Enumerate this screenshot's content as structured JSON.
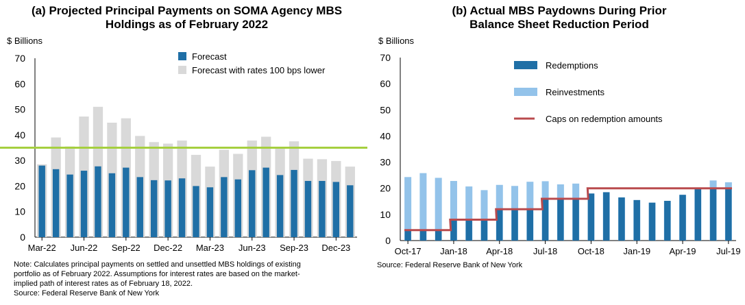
{
  "chart_data": [
    {
      "type": "bar",
      "title_lines": [
        "(a) Projected Principal Payments on SOMA Agency MBS",
        "Holdings as of February 2022"
      ],
      "ylabel": "$ Billions",
      "ylim": [
        0,
        70
      ],
      "yticks": [
        "0",
        "10",
        "20",
        "30",
        "40",
        "50",
        "60",
        "70"
      ],
      "xtick_labels": [
        "Mar-22",
        "Jun-22",
        "Sep-22",
        "Dec-22",
        "Mar-23",
        "Jun-23",
        "Sep-23",
        "Dec-23"
      ],
      "legend_position": "top-right",
      "series": [
        {
          "name": "Forecast",
          "color": "#1f6fa6",
          "values": [
            28,
            26.6,
            24.5,
            26,
            27.7,
            25,
            27.2,
            23.5,
            22.3,
            22.2,
            23,
            20,
            19.5,
            23.5,
            22.6,
            26.2,
            27.2,
            24.3,
            26.3,
            22,
            22,
            21.6,
            20.3
          ]
        },
        {
          "name": "Forecast with rates 100 bps lower",
          "color": "#d9d9d9",
          "values": [
            28.5,
            39,
            35.5,
            47.2,
            51,
            44.8,
            46.5,
            39.6,
            37.2,
            36.6,
            37.8,
            32.2,
            27.6,
            34.2,
            32.6,
            37.8,
            39.3,
            35.2,
            37.5,
            30.7,
            30.5,
            29.8,
            27.6
          ]
        }
      ],
      "reference_line": {
        "value": 35,
        "color": "#a5cf3f"
      },
      "note": "Note: Calculates principal payments on settled and unsettled MBS holdings of existing portfolio as of February 2022. Assumptions for interest rates are based on the market-implied path of interest rates as of February 18, 2022.",
      "note_lines": [
        "Note: Calculates principal payments on settled and unsettled MBS holdings of existing",
        "portfolio as of February 2022. Assumptions for interest rates are based on the market-",
        "implied path of interest rates as of February 18, 2022."
      ],
      "source": "Source: Federal Reserve Bank of New York"
    },
    {
      "type": "bar",
      "title_lines": [
        "(b) Actual MBS Paydowns During Prior",
        "Balance Sheet Reduction Period"
      ],
      "ylabel": "$ Billions",
      "ylim": [
        0,
        70
      ],
      "yticks": [
        "0",
        "10",
        "20",
        "30",
        "40",
        "50",
        "60",
        "70"
      ],
      "xtick_labels": [
        "Oct-17",
        "Jan-18",
        "Apr-18",
        "Jul-18",
        "Oct-18",
        "Jan-19",
        "Apr-19",
        "Jul-19"
      ],
      "legend_position": "top-left",
      "series": [
        {
          "name": "Redemptions",
          "color": "#1f6fa6",
          "values": [
            4,
            4,
            4,
            8,
            8,
            8,
            12,
            12,
            12,
            16,
            16,
            16,
            18,
            18.5,
            16.5,
            15.5,
            14.5,
            15.2,
            17.5,
            20,
            20,
            20
          ]
        },
        {
          "name": "Reinvestments",
          "color": "#93c3ea",
          "values": [
            24.3,
            25.8,
            24,
            22.8,
            20.7,
            19.3,
            21.3,
            20.9,
            22.5,
            22.7,
            21.5,
            21.8,
            18,
            18.5,
            16.5,
            15.5,
            14.5,
            15.2,
            17.5,
            20,
            23,
            22.3
          ]
        },
        {
          "name": "Caps on redemption amounts",
          "color": "#b94a4d",
          "line": true,
          "values": [
            4,
            4,
            4,
            8,
            8,
            8,
            12,
            12,
            12,
            16,
            16,
            16,
            20,
            20,
            20,
            20,
            20,
            20,
            20,
            20,
            20,
            20
          ]
        }
      ],
      "source": "Source: Federal Reserve Bank of New York"
    }
  ]
}
